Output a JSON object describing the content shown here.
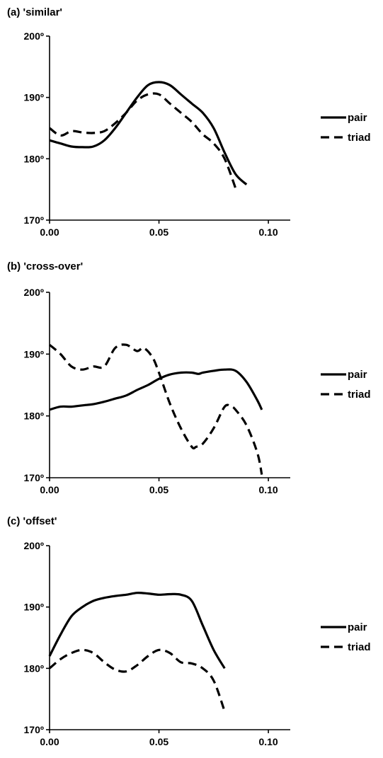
{
  "chart_data": [
    {
      "type": "line",
      "title": "(a)  'similar'",
      "xlim": [
        0,
        0.11
      ],
      "ylim": [
        170,
        200
      ],
      "x_ticks": [
        0,
        0.05,
        0.1
      ],
      "x_tick_labels": [
        "0.00",
        "0.05",
        "0.10"
      ],
      "y_ticks": [
        170,
        180,
        190,
        200
      ],
      "y_tick_labels": [
        "170º",
        "180º",
        "190º",
        "200º"
      ],
      "legend_position": "right",
      "grid": false,
      "series": [
        {
          "name": "pair",
          "style": "solid",
          "color": "#000000",
          "x": [
            0.0,
            0.005,
            0.01,
            0.015,
            0.02,
            0.025,
            0.03,
            0.035,
            0.04,
            0.045,
            0.05,
            0.055,
            0.06,
            0.065,
            0.07,
            0.075,
            0.08,
            0.085,
            0.09
          ],
          "y": [
            183.0,
            182.5,
            182.0,
            181.9,
            182.0,
            183.0,
            185.0,
            187.5,
            190.0,
            192.0,
            192.5,
            192.0,
            190.5,
            189.0,
            187.5,
            185.0,
            181.0,
            177.5,
            175.8
          ]
        },
        {
          "name": "triad",
          "style": "dashed",
          "color": "#000000",
          "x": [
            0.0,
            0.005,
            0.01,
            0.015,
            0.02,
            0.025,
            0.03,
            0.035,
            0.04,
            0.045,
            0.05,
            0.055,
            0.06,
            0.065,
            0.07,
            0.075,
            0.08,
            0.085
          ],
          "y": [
            185.0,
            183.8,
            184.5,
            184.3,
            184.2,
            184.5,
            185.8,
            187.5,
            189.5,
            190.5,
            190.5,
            189.0,
            187.5,
            186.0,
            184.0,
            182.5,
            180.0,
            175.2
          ]
        }
      ]
    },
    {
      "type": "line",
      "title": "(b) 'cross-over'",
      "xlim": [
        0,
        0.11
      ],
      "ylim": [
        170,
        200
      ],
      "x_ticks": [
        0,
        0.05,
        0.1
      ],
      "x_tick_labels": [
        "0.00",
        "0.05",
        "0.10"
      ],
      "y_ticks": [
        170,
        180,
        190,
        200
      ],
      "y_tick_labels": [
        "170º",
        "180º",
        "190º",
        "200º"
      ],
      "legend_position": "right",
      "grid": false,
      "series": [
        {
          "name": "pair",
          "style": "solid",
          "color": "#000000",
          "x": [
            0.0,
            0.005,
            0.01,
            0.015,
            0.02,
            0.025,
            0.03,
            0.035,
            0.04,
            0.045,
            0.05,
            0.055,
            0.06,
            0.065,
            0.068,
            0.07,
            0.075,
            0.08,
            0.085,
            0.09,
            0.095,
            0.097
          ],
          "y": [
            181.0,
            181.5,
            181.5,
            181.7,
            181.9,
            182.3,
            182.8,
            183.3,
            184.2,
            185.0,
            186.0,
            186.7,
            187.0,
            187.0,
            186.8,
            187.0,
            187.3,
            187.5,
            187.3,
            185.5,
            182.5,
            181.0
          ]
        },
        {
          "name": "triad",
          "style": "dashed",
          "color": "#000000",
          "x": [
            0.0,
            0.005,
            0.01,
            0.015,
            0.02,
            0.025,
            0.03,
            0.035,
            0.04,
            0.043,
            0.047,
            0.05,
            0.055,
            0.06,
            0.065,
            0.067,
            0.07,
            0.075,
            0.08,
            0.083,
            0.085,
            0.09,
            0.095,
            0.097
          ],
          "y": [
            191.5,
            190.0,
            188.0,
            187.5,
            188.0,
            188.0,
            191.0,
            191.5,
            190.5,
            191.0,
            189.5,
            187.0,
            182.0,
            178.0,
            175.0,
            175.0,
            175.5,
            178.0,
            181.5,
            181.5,
            181.0,
            178.5,
            174.0,
            170.5
          ]
        }
      ]
    },
    {
      "type": "line",
      "title": "(c) 'offset'",
      "xlim": [
        0,
        0.11
      ],
      "ylim": [
        170,
        200
      ],
      "x_ticks": [
        0,
        0.05,
        0.1
      ],
      "x_tick_labels": [
        "0.00",
        "0.05",
        "0.10"
      ],
      "y_ticks": [
        170,
        180,
        190,
        200
      ],
      "y_tick_labels": [
        "170º",
        "180º",
        "190º",
        "200º"
      ],
      "legend_position": "right",
      "grid": false,
      "series": [
        {
          "name": "pair",
          "style": "solid",
          "color": "#000000",
          "x": [
            0.0,
            0.005,
            0.01,
            0.015,
            0.02,
            0.025,
            0.03,
            0.035,
            0.04,
            0.045,
            0.05,
            0.055,
            0.06,
            0.065,
            0.07,
            0.075,
            0.08
          ],
          "y": [
            182.0,
            185.5,
            188.5,
            190.0,
            191.0,
            191.5,
            191.8,
            192.0,
            192.3,
            192.2,
            192.0,
            192.1,
            192.0,
            191.0,
            187.0,
            183.0,
            180.0
          ]
        },
        {
          "name": "triad",
          "style": "dashed",
          "color": "#000000",
          "x": [
            0.0,
            0.005,
            0.01,
            0.015,
            0.02,
            0.025,
            0.03,
            0.035,
            0.04,
            0.045,
            0.05,
            0.055,
            0.06,
            0.065,
            0.07,
            0.075,
            0.08
          ],
          "y": [
            180.0,
            181.5,
            182.5,
            183.0,
            182.5,
            181.0,
            179.8,
            179.5,
            180.5,
            182.0,
            183.0,
            182.5,
            181.0,
            180.8,
            180.0,
            178.0,
            173.0
          ]
        }
      ]
    }
  ]
}
